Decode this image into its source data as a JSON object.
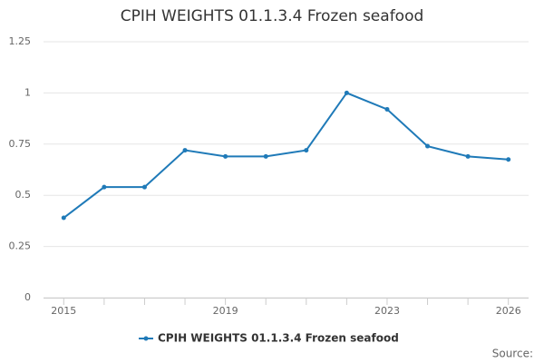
{
  "chart_data": {
    "type": "line",
    "title": "CPIH WEIGHTS 01.1.3.4 Frozen seafood",
    "x": [
      2015,
      2016,
      2017,
      2018,
      2019,
      2020,
      2021,
      2022,
      2023,
      2024,
      2025,
      2026
    ],
    "series": [
      {
        "name": "CPIH WEIGHTS 01.1.3.4 Frozen seafood",
        "color": "#1f7ab8",
        "values": [
          0.39,
          0.54,
          0.54,
          0.72,
          0.69,
          0.69,
          0.72,
          1.0,
          0.92,
          0.74,
          0.69,
          0.675
        ]
      }
    ],
    "xlim": [
      2014.5,
      2026.5
    ],
    "xticks": [
      2015,
      2019,
      2023,
      2026
    ],
    "ylim": [
      0,
      1.25
    ],
    "yticks": [
      0,
      0.25,
      0.5,
      0.75,
      1,
      1.25
    ],
    "grid": true,
    "source": "Source:"
  }
}
